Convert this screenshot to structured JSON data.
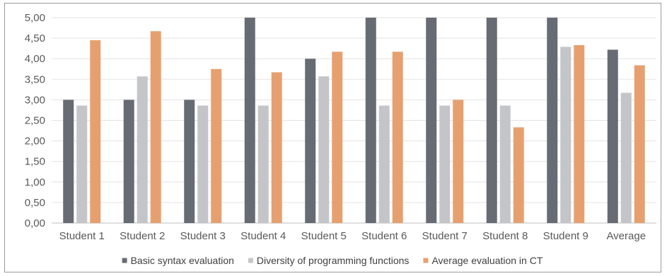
{
  "chart_data": {
    "type": "bar",
    "categories": [
      "Student 1",
      "Student 2",
      "Student 3",
      "Student 4",
      "Student 5",
      "Student 6",
      "Student 7",
      "Student 8",
      "Student 9",
      "Average"
    ],
    "series": [
      {
        "name": "Basic syntax evaluation",
        "color": "#676b73",
        "values": [
          3.0,
          3.0,
          3.0,
          5.0,
          4.0,
          5.0,
          5.0,
          5.0,
          5.0,
          4.22
        ]
      },
      {
        "name": "Diversity of programming functions",
        "color": "#c4c5c9",
        "values": [
          2.86,
          3.57,
          2.86,
          2.86,
          3.57,
          2.86,
          2.86,
          2.86,
          4.29,
          3.17
        ]
      },
      {
        "name": "Average evaluation in CT",
        "color": "#e6a06f",
        "values": [
          4.45,
          4.67,
          3.75,
          3.67,
          4.17,
          4.17,
          3.0,
          2.33,
          4.33,
          3.84
        ]
      }
    ],
    "yticks": [
      "0,00",
      "0,50",
      "1,00",
      "1,50",
      "2,00",
      "2,50",
      "3,00",
      "3,50",
      "4,00",
      "4,50",
      "5,00"
    ],
    "ylim": [
      0,
      5
    ],
    "grid": true,
    "legend_position": "bottom",
    "title": "",
    "xlabel": "",
    "ylabel": ""
  }
}
